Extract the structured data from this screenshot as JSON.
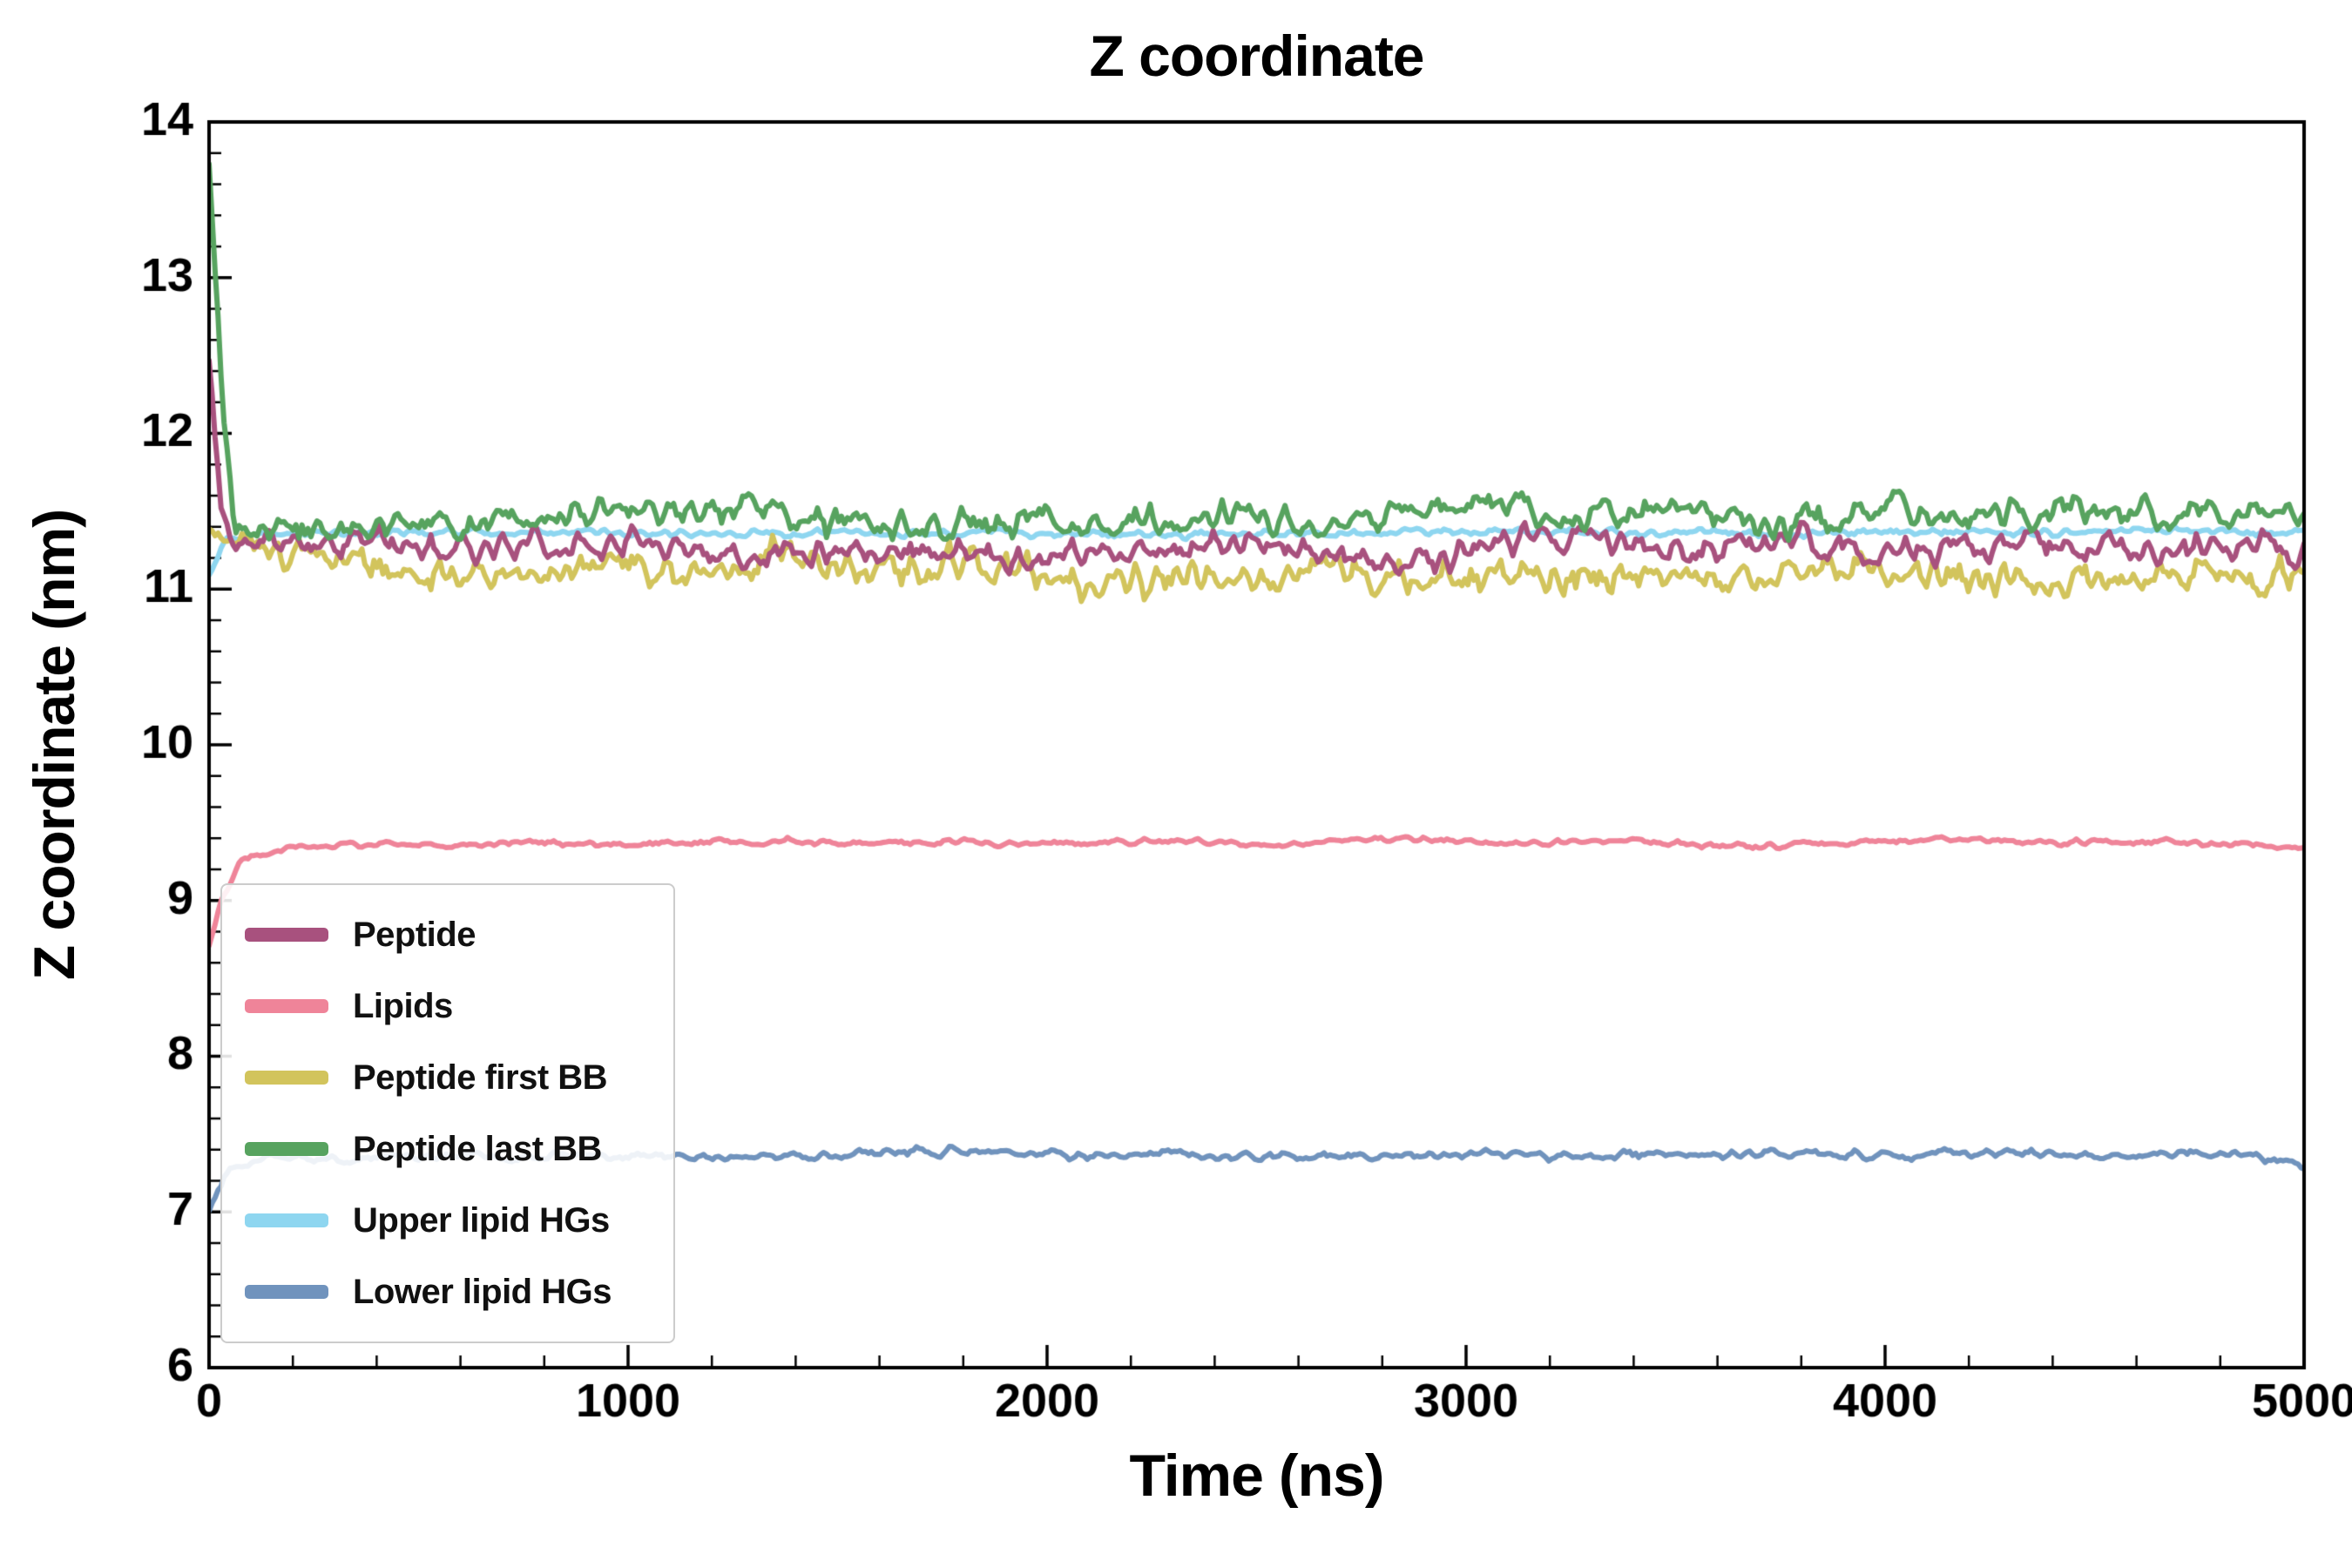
{
  "chart_data": {
    "type": "line",
    "title": "Z coordinate",
    "xlabel": "Time (ns)",
    "ylabel": "Z coordinate (nm)",
    "xlim": [
      0,
      5000
    ],
    "ylim": [
      6,
      14
    ],
    "xticks": [
      0,
      1000,
      2000,
      3000,
      4000,
      5000
    ],
    "yticks": [
      6,
      7,
      8,
      9,
      10,
      11,
      12,
      13,
      14
    ],
    "x_minor_step": 200,
    "y_minor_step": 0.2,
    "grid": false,
    "background": "#ffffff",
    "frame_color": "#000000",
    "legend_position": "lower left inside axes",
    "series": [
      {
        "name": "Peptide",
        "color": "#a8517e",
        "seed": 11,
        "noise_fast": 0.07,
        "noise_slow": 0.085,
        "keypoints": [
          [
            0,
            12.45
          ],
          [
            10,
            12.1
          ],
          [
            30,
            11.5
          ],
          [
            60,
            11.3
          ],
          [
            2500,
            11.25
          ],
          [
            5000,
            11.3
          ]
        ]
      },
      {
        "name": "Lipids",
        "color": "#ef8499",
        "seed": 22,
        "noise_fast": 0.014,
        "noise_slow": 0.016,
        "keypoints": [
          [
            0,
            8.75
          ],
          [
            30,
            9.05
          ],
          [
            80,
            9.3
          ],
          [
            200,
            9.36
          ],
          [
            5000,
            9.38
          ]
        ]
      },
      {
        "name": "Peptide first BB",
        "color": "#d2c45c",
        "seed": 33,
        "noise_fast": 0.085,
        "noise_slow": 0.09,
        "keypoints": [
          [
            0,
            11.2
          ],
          [
            100,
            11.12
          ],
          [
            5000,
            11.08
          ]
        ]
      },
      {
        "name": "Peptide last BB",
        "color": "#57a35f",
        "seed": 44,
        "noise_fast": 0.075,
        "noise_slow": 0.085,
        "keypoints": [
          [
            0,
            13.9
          ],
          [
            15,
            13.2
          ],
          [
            35,
            12.2
          ],
          [
            60,
            11.5
          ],
          [
            150,
            11.42
          ],
          [
            5000,
            11.52
          ]
        ]
      },
      {
        "name": "Upper lipid HGs",
        "color": "#8ed6f0",
        "seed": 55,
        "noise_fast": 0.018,
        "noise_slow": 0.02,
        "keypoints": [
          [
            0,
            11.05
          ],
          [
            40,
            11.3
          ],
          [
            120,
            11.36
          ],
          [
            5000,
            11.37
          ]
        ]
      },
      {
        "name": "Lower lipid HGs",
        "color": "#7093bd",
        "seed": 66,
        "noise_fast": 0.02,
        "noise_slow": 0.022,
        "keypoints": [
          [
            0,
            7.1
          ],
          [
            40,
            7.3
          ],
          [
            120,
            7.36
          ],
          [
            5000,
            7.37
          ]
        ]
      }
    ],
    "draw_order": [
      "Upper lipid HGs",
      "Lower lipid HGs",
      "Lipids",
      "Peptide first BB",
      "Peptide",
      "Peptide last BB"
    ]
  }
}
